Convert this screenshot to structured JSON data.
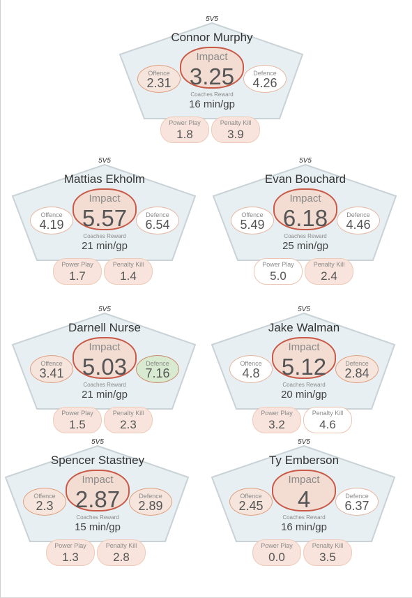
{
  "colors": {
    "pentagon_fill": "#e7eff2",
    "pentagon_stroke": "#c9d2d6",
    "impact_border": "#c85a48",
    "impact_fill": "#f3dcd2",
    "stat_fill": "#f6e5dc",
    "good_fill": "#d8ead0"
  },
  "labels": {
    "impact": "Impact",
    "offence": "Offence",
    "defence": "Defence",
    "coaches_reward": "Coaches Reward",
    "power_play": "Power Play",
    "penalty_kill": "Penalty Kill"
  },
  "players": [
    {
      "format": "5V5",
      "name": "Connor Murphy",
      "impact": "3.25",
      "offence": "2.31",
      "defence": "4.26",
      "toi": "16 min/gp",
      "pp": "1.8",
      "pk": "3.9",
      "offence_style": "normal",
      "defence_style": "light",
      "pp_style": "normal",
      "pk_style": "normal"
    },
    {
      "format": "5V5",
      "name": "Mattias Ekholm",
      "impact": "5.57",
      "offence": "4.19",
      "defence": "6.54",
      "toi": "21 min/gp",
      "pp": "1.7",
      "pk": "1.4",
      "offence_style": "light",
      "defence_style": "light",
      "pp_style": "normal",
      "pk_style": "normal"
    },
    {
      "format": "5V5",
      "name": "Evan Bouchard",
      "impact": "6.18",
      "offence": "5.49",
      "defence": "4.46",
      "toi": "25 min/gp",
      "pp": "5.0",
      "pk": "2.4",
      "offence_style": "light",
      "defence_style": "light",
      "pp_style": "light",
      "pk_style": "normal"
    },
    {
      "format": "5V5",
      "name": "Darnell Nurse",
      "impact": "5.03",
      "offence": "3.41",
      "defence": "7.16",
      "toi": "21 min/gp",
      "pp": "1.5",
      "pk": "2.3",
      "offence_style": "normal",
      "defence_style": "good",
      "pp_style": "normal",
      "pk_style": "normal"
    },
    {
      "format": "5V5",
      "name": "Jake Walman",
      "impact": "5.12",
      "offence": "4.8",
      "defence": "2.84",
      "toi": "20 min/gp",
      "pp": "3.2",
      "pk": "4.6",
      "offence_style": "light",
      "defence_style": "normal",
      "pp_style": "normal",
      "pk_style": "light"
    },
    {
      "format": "5V5",
      "name": "Spencer Stastney",
      "impact": "2.87",
      "offence": "2.3",
      "defence": "2.89",
      "toi": "15 min/gp",
      "pp": "1.3",
      "pk": "2.8",
      "offence_style": "normal",
      "defence_style": "normal",
      "pp_style": "normal",
      "pk_style": "normal"
    },
    {
      "format": "5V5",
      "name": "Ty Emberson",
      "impact": "4",
      "offence": "2.45",
      "defence": "6.37",
      "toi": "16 min/gp",
      "pp": "0.0",
      "pk": "3.5",
      "offence_style": "normal",
      "defence_style": "light",
      "pp_style": "normal",
      "pk_style": "normal"
    }
  ]
}
